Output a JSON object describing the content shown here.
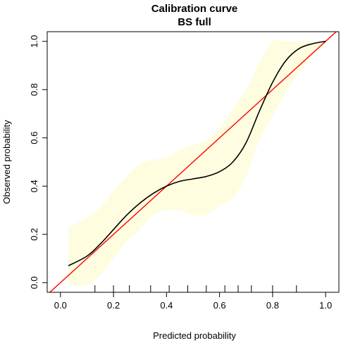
{
  "chart_data": {
    "type": "line",
    "title": "Calibration curve",
    "subtitle": "BS full",
    "xlabel": "Predicted probability",
    "ylabel": "Observed probability",
    "xlim": [
      -0.05,
      1.05
    ],
    "ylim": [
      -0.04,
      1.04
    ],
    "x_ticks": [
      "0.0",
      "0.2",
      "0.4",
      "0.6",
      "0.8",
      "1.0"
    ],
    "y_ticks": [
      "0.0",
      "0.2",
      "0.4",
      "0.6",
      "0.8",
      "1.0"
    ],
    "grid": false,
    "colors": {
      "calibration": "#000000",
      "ideal": "#ff0000",
      "band": "#fffde0"
    },
    "rug_ticks": [
      0.13,
      0.2,
      0.26,
      0.34,
      0.41,
      0.48,
      0.55,
      0.62,
      0.67,
      0.72,
      0.8,
      0.89
    ],
    "series": [
      {
        "role": "calibration",
        "x": [
          0.03,
          0.1,
          0.15,
          0.2,
          0.25,
          0.3,
          0.35,
          0.4,
          0.45,
          0.5,
          0.55,
          0.6,
          0.65,
          0.7,
          0.75,
          0.8,
          0.85,
          0.9,
          0.95,
          1.0
        ],
        "y": [
          0.07,
          0.11,
          0.16,
          0.22,
          0.28,
          0.33,
          0.37,
          0.4,
          0.42,
          0.43,
          0.44,
          0.46,
          0.5,
          0.58,
          0.71,
          0.83,
          0.92,
          0.97,
          0.99,
          1.0
        ]
      },
      {
        "role": "ideal",
        "x": [
          -0.05,
          1.05
        ],
        "y": [
          -0.05,
          1.05
        ]
      },
      {
        "role": "band",
        "x": [
          0.03,
          0.1,
          0.15,
          0.2,
          0.25,
          0.3,
          0.35,
          0.4,
          0.45,
          0.5,
          0.55,
          0.6,
          0.65,
          0.7,
          0.75,
          0.8,
          0.85,
          0.9,
          0.95,
          1.0
        ],
        "lower": [
          -0.01,
          -0.01,
          0.03,
          0.1,
          0.17,
          0.22,
          0.28,
          0.3,
          0.3,
          0.28,
          0.28,
          0.32,
          0.35,
          0.44,
          0.59,
          0.69,
          0.79,
          0.87,
          0.94,
          0.99
        ],
        "upper": [
          0.23,
          0.27,
          0.31,
          0.38,
          0.44,
          0.49,
          0.51,
          0.52,
          0.55,
          0.57,
          0.59,
          0.64,
          0.72,
          0.8,
          0.91,
          1.0,
          1.0,
          1.0,
          1.0,
          1.0
        ]
      }
    ]
  }
}
